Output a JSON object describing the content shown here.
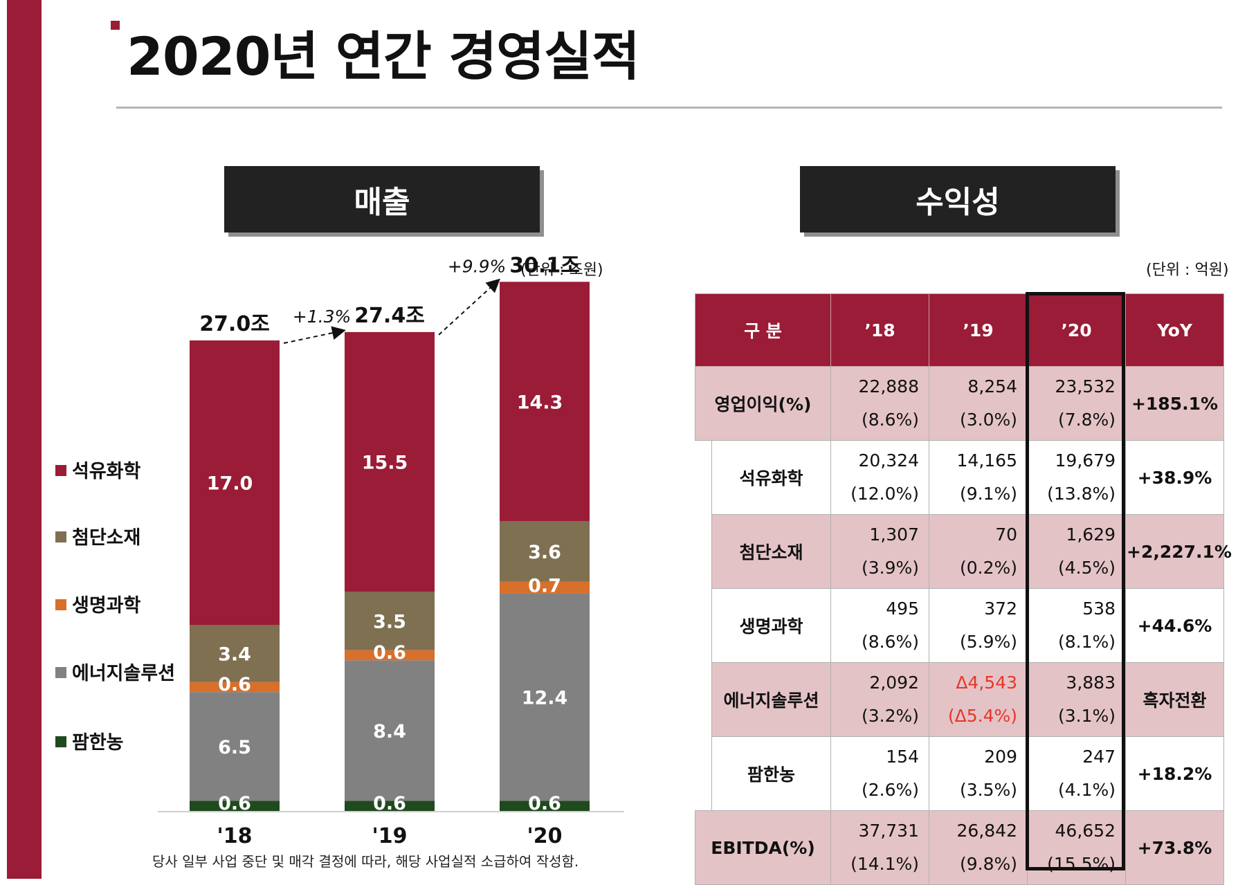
{
  "page": {
    "title": "2020년 연간 경영실적",
    "footnote": "당사 일부 사업 중단 및 매각 결정에 따라, 해당 사업실적 소급하여 작성함."
  },
  "sales_section": {
    "title": "매출",
    "unit": "(단위 : 조원)"
  },
  "profit_section": {
    "title": "수익성",
    "unit": "(단위 : 억원)"
  },
  "colors": {
    "brand": "#9a1c36",
    "petro": "#9a1c36",
    "advanced": "#7f7052",
    "life": "#d86f2a",
    "energy": "#818181",
    "farm": "#1f4a1e",
    "pink": "#e4c3c6"
  },
  "chart_data": {
    "type": "bar",
    "stacked": true,
    "title": "매출",
    "unit_note": "(단위 : 조원)",
    "categories": [
      "'18",
      "'19",
      "'20"
    ],
    "series": [
      {
        "name": "팜한농",
        "values": [
          0.6,
          0.6,
          0.6
        ],
        "color": "#1f4a1e"
      },
      {
        "name": "에너지솔루션",
        "values": [
          6.5,
          8.4,
          12.4
        ],
        "color": "#818181"
      },
      {
        "name": "생명과학",
        "values": [
          0.6,
          0.6,
          0.7
        ],
        "color": "#d86f2a"
      },
      {
        "name": "첨단소재",
        "values": [
          3.4,
          3.5,
          3.6
        ],
        "color": "#7f7052"
      },
      {
        "name": "석유화학",
        "values": [
          17.0,
          15.5,
          14.3
        ],
        "color": "#9a1c36"
      }
    ],
    "totals": [
      "27.0조",
      "27.4조",
      "30.1조"
    ],
    "growth": [
      "+1.3%",
      "+9.9%"
    ],
    "legend_order": [
      "석유화학",
      "첨단소재",
      "생명과학",
      "에너지솔루션",
      "팜한농"
    ],
    "legend_position": "left",
    "ylim": [
      0,
      30.1
    ]
  },
  "table": {
    "headers": [
      "구  분",
      "’18",
      "’19",
      "’20",
      "YoY"
    ],
    "rows": [
      {
        "label": "영업이익(%)",
        "v18": "22,888",
        "p18": "(8.6%)",
        "v19": "8,254",
        "p19": "(3.0%)",
        "v20": "23,532",
        "p20": "(7.8%)",
        "yoy": "+185.1%"
      },
      {
        "label": "석유화학",
        "v18": "20,324",
        "p18": "(12.0%)",
        "v19": "14,165",
        "p19": "(9.1%)",
        "v20": "19,679",
        "p20": "(13.8%)",
        "yoy": "+38.9%"
      },
      {
        "label": "첨단소재",
        "v18": "1,307",
        "p18": "(3.9%)",
        "v19": "70",
        "p19": "(0.2%)",
        "v20": "1,629",
        "p20": "(4.5%)",
        "yoy": "+2,227.1%"
      },
      {
        "label": "생명과학",
        "v18": "495",
        "p18": "(8.6%)",
        "v19": "372",
        "p19": "(5.9%)",
        "v20": "538",
        "p20": "(8.1%)",
        "yoy": "+44.6%"
      },
      {
        "label": "에너지솔루션",
        "v18": "2,092",
        "p18": "(3.2%)",
        "v19": "Δ4,543",
        "p19": "(Δ5.4%)",
        "v20": "3,883",
        "p20": "(3.1%)",
        "yoy": "흑자전환"
      },
      {
        "label": "팜한농",
        "v18": "154",
        "p18": "(2.6%)",
        "v19": "209",
        "p19": "(3.5%)",
        "v20": "247",
        "p20": "(4.1%)",
        "yoy": "+18.2%"
      },
      {
        "label": "EBITDA(%)",
        "v18": "37,731",
        "p18": "(14.1%)",
        "v19": "26,842",
        "p19": "(9.8%)",
        "v20": "46,652",
        "p20": "(15.5%)",
        "yoy": "+73.8%"
      }
    ]
  }
}
